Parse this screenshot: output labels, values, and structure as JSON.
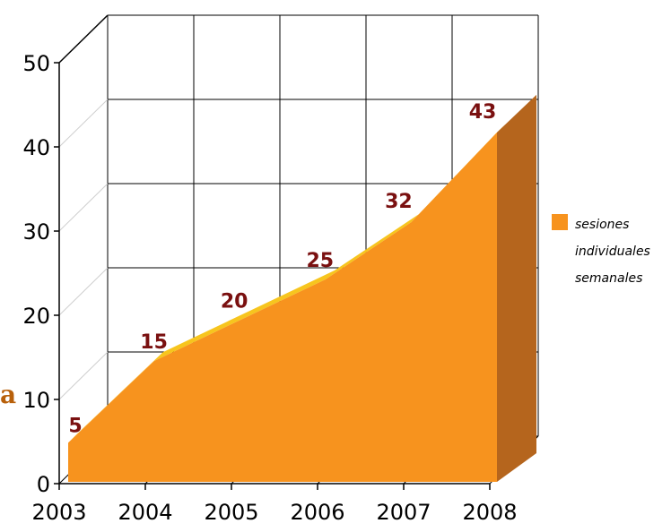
{
  "chart_data": {
    "type": "area",
    "categories": [
      "2003",
      "2004",
      "2005",
      "2006",
      "2007",
      "2008"
    ],
    "series": [
      {
        "name": "sesiones individuales semanales",
        "values": [
          5,
          15,
          20,
          25,
          32,
          43
        ],
        "color": "#f7931e",
        "top_color": "#f7c51e",
        "side_color": "#b5651d"
      }
    ],
    "data_labels": [
      "5",
      "15",
      "20",
      "25",
      "32",
      "43"
    ],
    "y_ticks": [
      "0",
      "10",
      "20",
      "30",
      "40",
      "50"
    ],
    "ylim": [
      0,
      50
    ],
    "grid": true,
    "legend_position": "right",
    "legend_lines": [
      "sesiones",
      "individuales",
      "semanales"
    ]
  },
  "side_fragment": "a"
}
